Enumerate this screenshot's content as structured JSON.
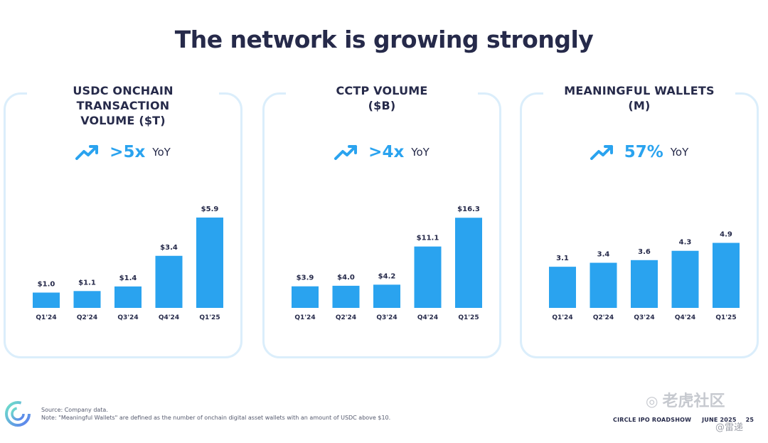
{
  "title": "The network is growing strongly",
  "chart_data": [
    {
      "type": "bar",
      "title": "USDC ONCHAIN TRANSACTION\nVOLUME ($T)",
      "growth_value": ">5x",
      "growth_unit": "YoY",
      "categories": [
        "Q1'24",
        "Q2'24",
        "Q3'24",
        "Q4'24",
        "Q1'25"
      ],
      "values": [
        1.0,
        1.1,
        1.4,
        3.4,
        5.9
      ],
      "labels": [
        "$1.0",
        "$1.1",
        "$1.4",
        "$3.4",
        "$5.9"
      ],
      "ylim": [
        0,
        6.5
      ],
      "color": "#2aa3ef"
    },
    {
      "type": "bar",
      "title": "CCTP VOLUME\n($B)",
      "growth_value": ">4x",
      "growth_unit": "YoY",
      "categories": [
        "Q1'24",
        "Q2'24",
        "Q3'24",
        "Q4'24",
        "Q1'25"
      ],
      "values": [
        3.9,
        4.0,
        4.2,
        11.1,
        16.3
      ],
      "labels": [
        "$3.9",
        "$4.0",
        "$4.2",
        "$11.1",
        "$16.3"
      ],
      "ylim": [
        0,
        18
      ],
      "color": "#2aa3ef"
    },
    {
      "type": "bar",
      "title": "MEANINGFUL WALLETS\n(M)",
      "growth_value": "57%",
      "growth_unit": "YoY",
      "categories": [
        "Q1'24",
        "Q2'24",
        "Q3'24",
        "Q4'24",
        "Q1'25"
      ],
      "values": [
        3.1,
        3.4,
        3.6,
        4.3,
        4.9
      ],
      "labels": [
        "3.1",
        "3.4",
        "3.6",
        "4.3",
        "4.9"
      ],
      "ylim": [
        0,
        7.5
      ],
      "color": "#2aa3ef"
    }
  ],
  "footer": {
    "source": "Source: Company data.",
    "note": "Note: \"Meaningful Wallets\" are defined as the number of onchain digital asset wallets with an amount of USDC above $10.",
    "roadshow": "CIRCLE IPO ROADSHOW",
    "date": "JUNE 2025",
    "page": "25"
  },
  "watermark": {
    "text": "老虎社区",
    "handle": "@雷递"
  },
  "icons": {
    "trend": "trend-up-arrow-icon",
    "logo": "circle-logo-icon"
  }
}
